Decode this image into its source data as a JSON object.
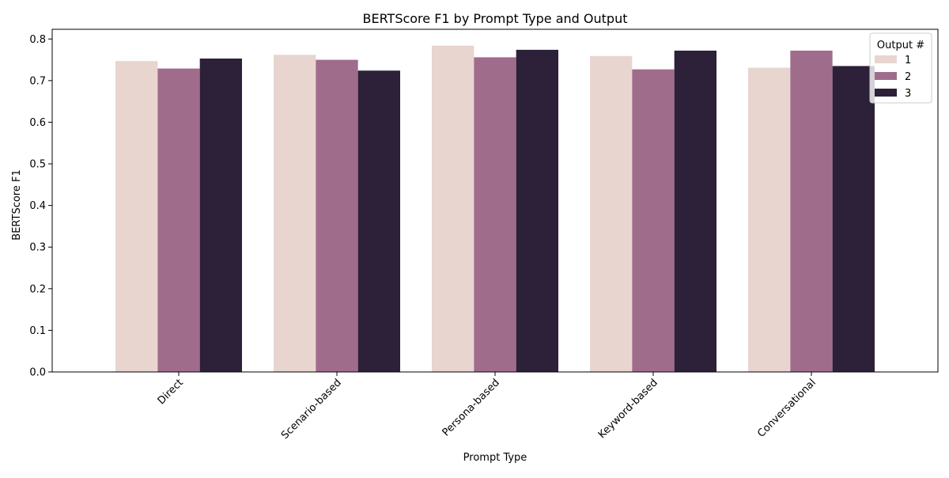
{
  "chart_data": {
    "type": "bar",
    "title": "BERTScore F1 by Prompt Type and Output",
    "xlabel": "Prompt Type",
    "ylabel": "BERTScore F1",
    "categories": [
      "Direct",
      "Scenario-based",
      "Persona-based",
      "Keyword-based",
      "Conversational"
    ],
    "series": [
      {
        "name": "1",
        "color": "#e8d5d0",
        "values": [
          0.747,
          0.762,
          0.784,
          0.759,
          0.731
        ]
      },
      {
        "name": "2",
        "color": "#a06c8c",
        "values": [
          0.729,
          0.75,
          0.756,
          0.727,
          0.772
        ]
      },
      {
        "name": "3",
        "color": "#2d2039",
        "values": [
          0.753,
          0.724,
          0.774,
          0.772,
          0.735
        ]
      }
    ],
    "ylim": [
      0,
      0.8
    ],
    "yticks": [
      "0.0",
      "0.1",
      "0.2",
      "0.3",
      "0.4",
      "0.5",
      "0.6",
      "0.7",
      "0.8"
    ],
    "legend": {
      "title": "Output #",
      "placement": "top-right"
    },
    "grid": false,
    "xtick_rotation": 45
  }
}
